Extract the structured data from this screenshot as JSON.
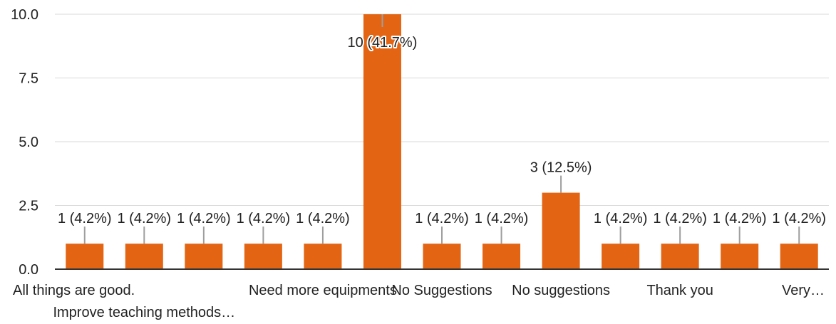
{
  "chart_data": {
    "type": "bar",
    "categories": [
      "All things are good.",
      "Improve teaching methods…",
      "",
      "",
      "Need more equipments",
      "",
      "No Suggestions",
      "",
      "No suggestions",
      "",
      "Thank you",
      "",
      "Very…"
    ],
    "values": [
      1,
      1,
      1,
      1,
      1,
      10,
      1,
      1,
      3,
      1,
      1,
      1,
      1
    ],
    "data_labels": [
      "1 (4.2%)",
      "1 (4.2%)",
      "1 (4.2%)",
      "1 (4.2%)",
      "1 (4.2%)",
      "10 (41.7%)",
      "1 (4.2%)",
      "1 (4.2%)",
      "3 (12.5%)",
      "1 (4.2%)",
      "1 (4.2%)",
      "1 (4.2%)",
      "1 (4.2%)"
    ],
    "y_ticks": [
      "0.0",
      "2.5",
      "5.0",
      "7.5",
      "10.0"
    ],
    "ylim": [
      0,
      10
    ],
    "grid": true,
    "bar_color": "#e36412",
    "grid_color": "#d9d9d9",
    "axis_color": "#333333"
  }
}
